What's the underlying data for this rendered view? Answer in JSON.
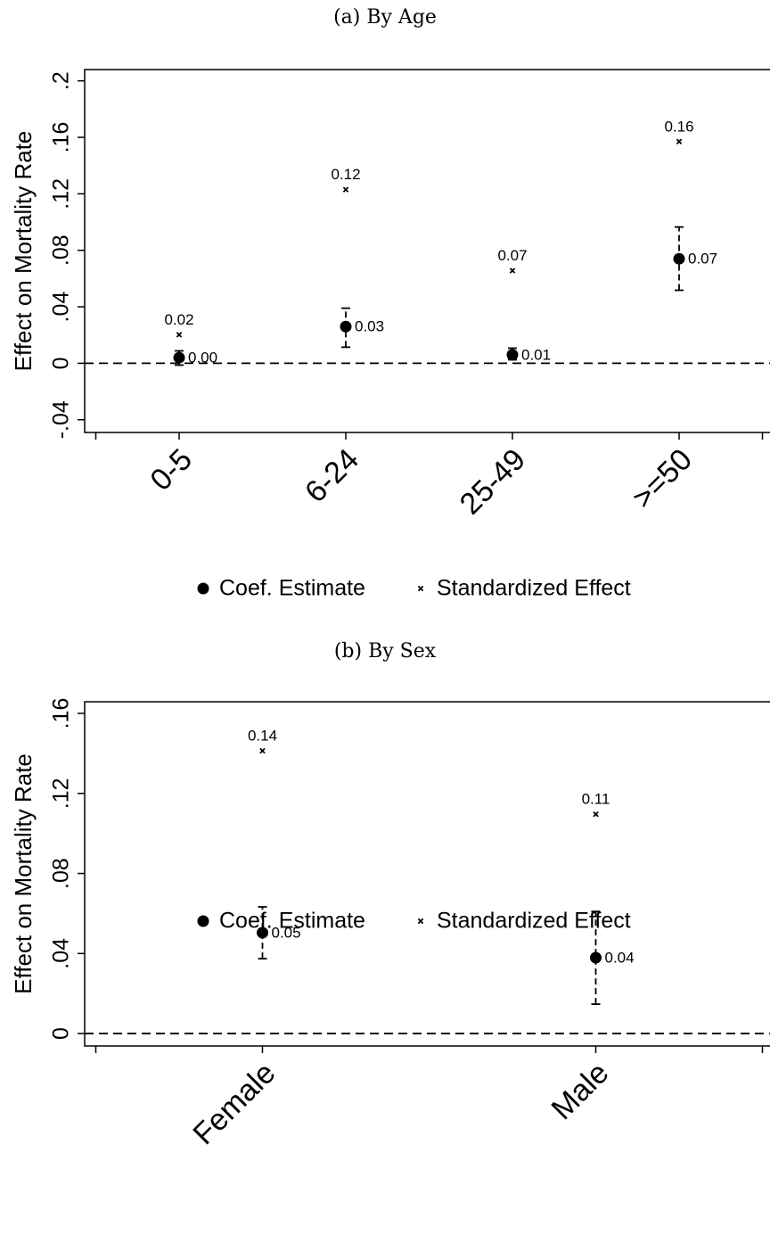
{
  "chart_data": [
    {
      "type": "dot",
      "title": "(a) By Age",
      "y_label": "Effect on Mortality Rate",
      "categories": [
        "0-5",
        "6-24",
        "25-49",
        ">=50"
      ],
      "ylim": [
        -0.049,
        0.208
      ],
      "yticks": [
        {
          "value": -0.04,
          "label": "-.04"
        },
        0,
        {
          "value": 0.04,
          "label": ".04"
        },
        {
          "value": 0.08,
          "label": ".08"
        },
        {
          "value": 0.12,
          "label": ".12"
        },
        {
          "value": 0.16,
          "label": ".16"
        },
        {
          "value": 0.2,
          "label": ".2"
        }
      ],
      "reference_line": 0,
      "series": [
        {
          "name": "Coef. Estimate",
          "marker": "circle",
          "color": "#000000",
          "values": [
            0.004,
            0.026,
            0.006,
            0.074
          ],
          "value_labels": [
            "0.00",
            "0.03",
            "0.01",
            "0.07"
          ],
          "ci_low": [
            -0.0013,
            0.0114,
            0.0025,
            0.0517
          ],
          "ci_high": [
            0.0088,
            0.039,
            0.0107,
            0.0965
          ]
        },
        {
          "name": "Standardized Effect",
          "marker": "x",
          "color": "#000000",
          "values": [
            0.0202,
            0.123,
            0.0656,
            0.157
          ],
          "value_labels": [
            "0.02",
            "0.12",
            "0.07",
            "0.16"
          ]
        }
      ]
    },
    {
      "type": "dot",
      "title": "(b) By Sex",
      "y_label": "Effect on Mortality Rate",
      "categories": [
        "Female",
        "Male"
      ],
      "ylim": [
        -0.0062,
        0.1658
      ],
      "yticks": [
        0,
        {
          "value": 0.04,
          "label": ".04"
        },
        {
          "value": 0.08,
          "label": ".08"
        },
        {
          "value": 0.12,
          "label": ".12"
        },
        {
          "value": 0.16,
          "label": ".16"
        }
      ],
      "reference_line": 0,
      "series": [
        {
          "name": "Coef. Estimate",
          "marker": "circle",
          "color": "#000000",
          "values": [
            0.0504,
            0.0379
          ],
          "value_labels": [
            "0.05",
            "0.04"
          ],
          "ci_low": [
            0.0374,
            0.0147
          ],
          "ci_high": [
            0.0633,
            0.061
          ]
        },
        {
          "name": "Standardized Effect",
          "marker": "x",
          "color": "#000000",
          "values": [
            0.1413,
            0.1096
          ],
          "value_labels": [
            "0.14",
            "0.11"
          ]
        }
      ]
    }
  ]
}
